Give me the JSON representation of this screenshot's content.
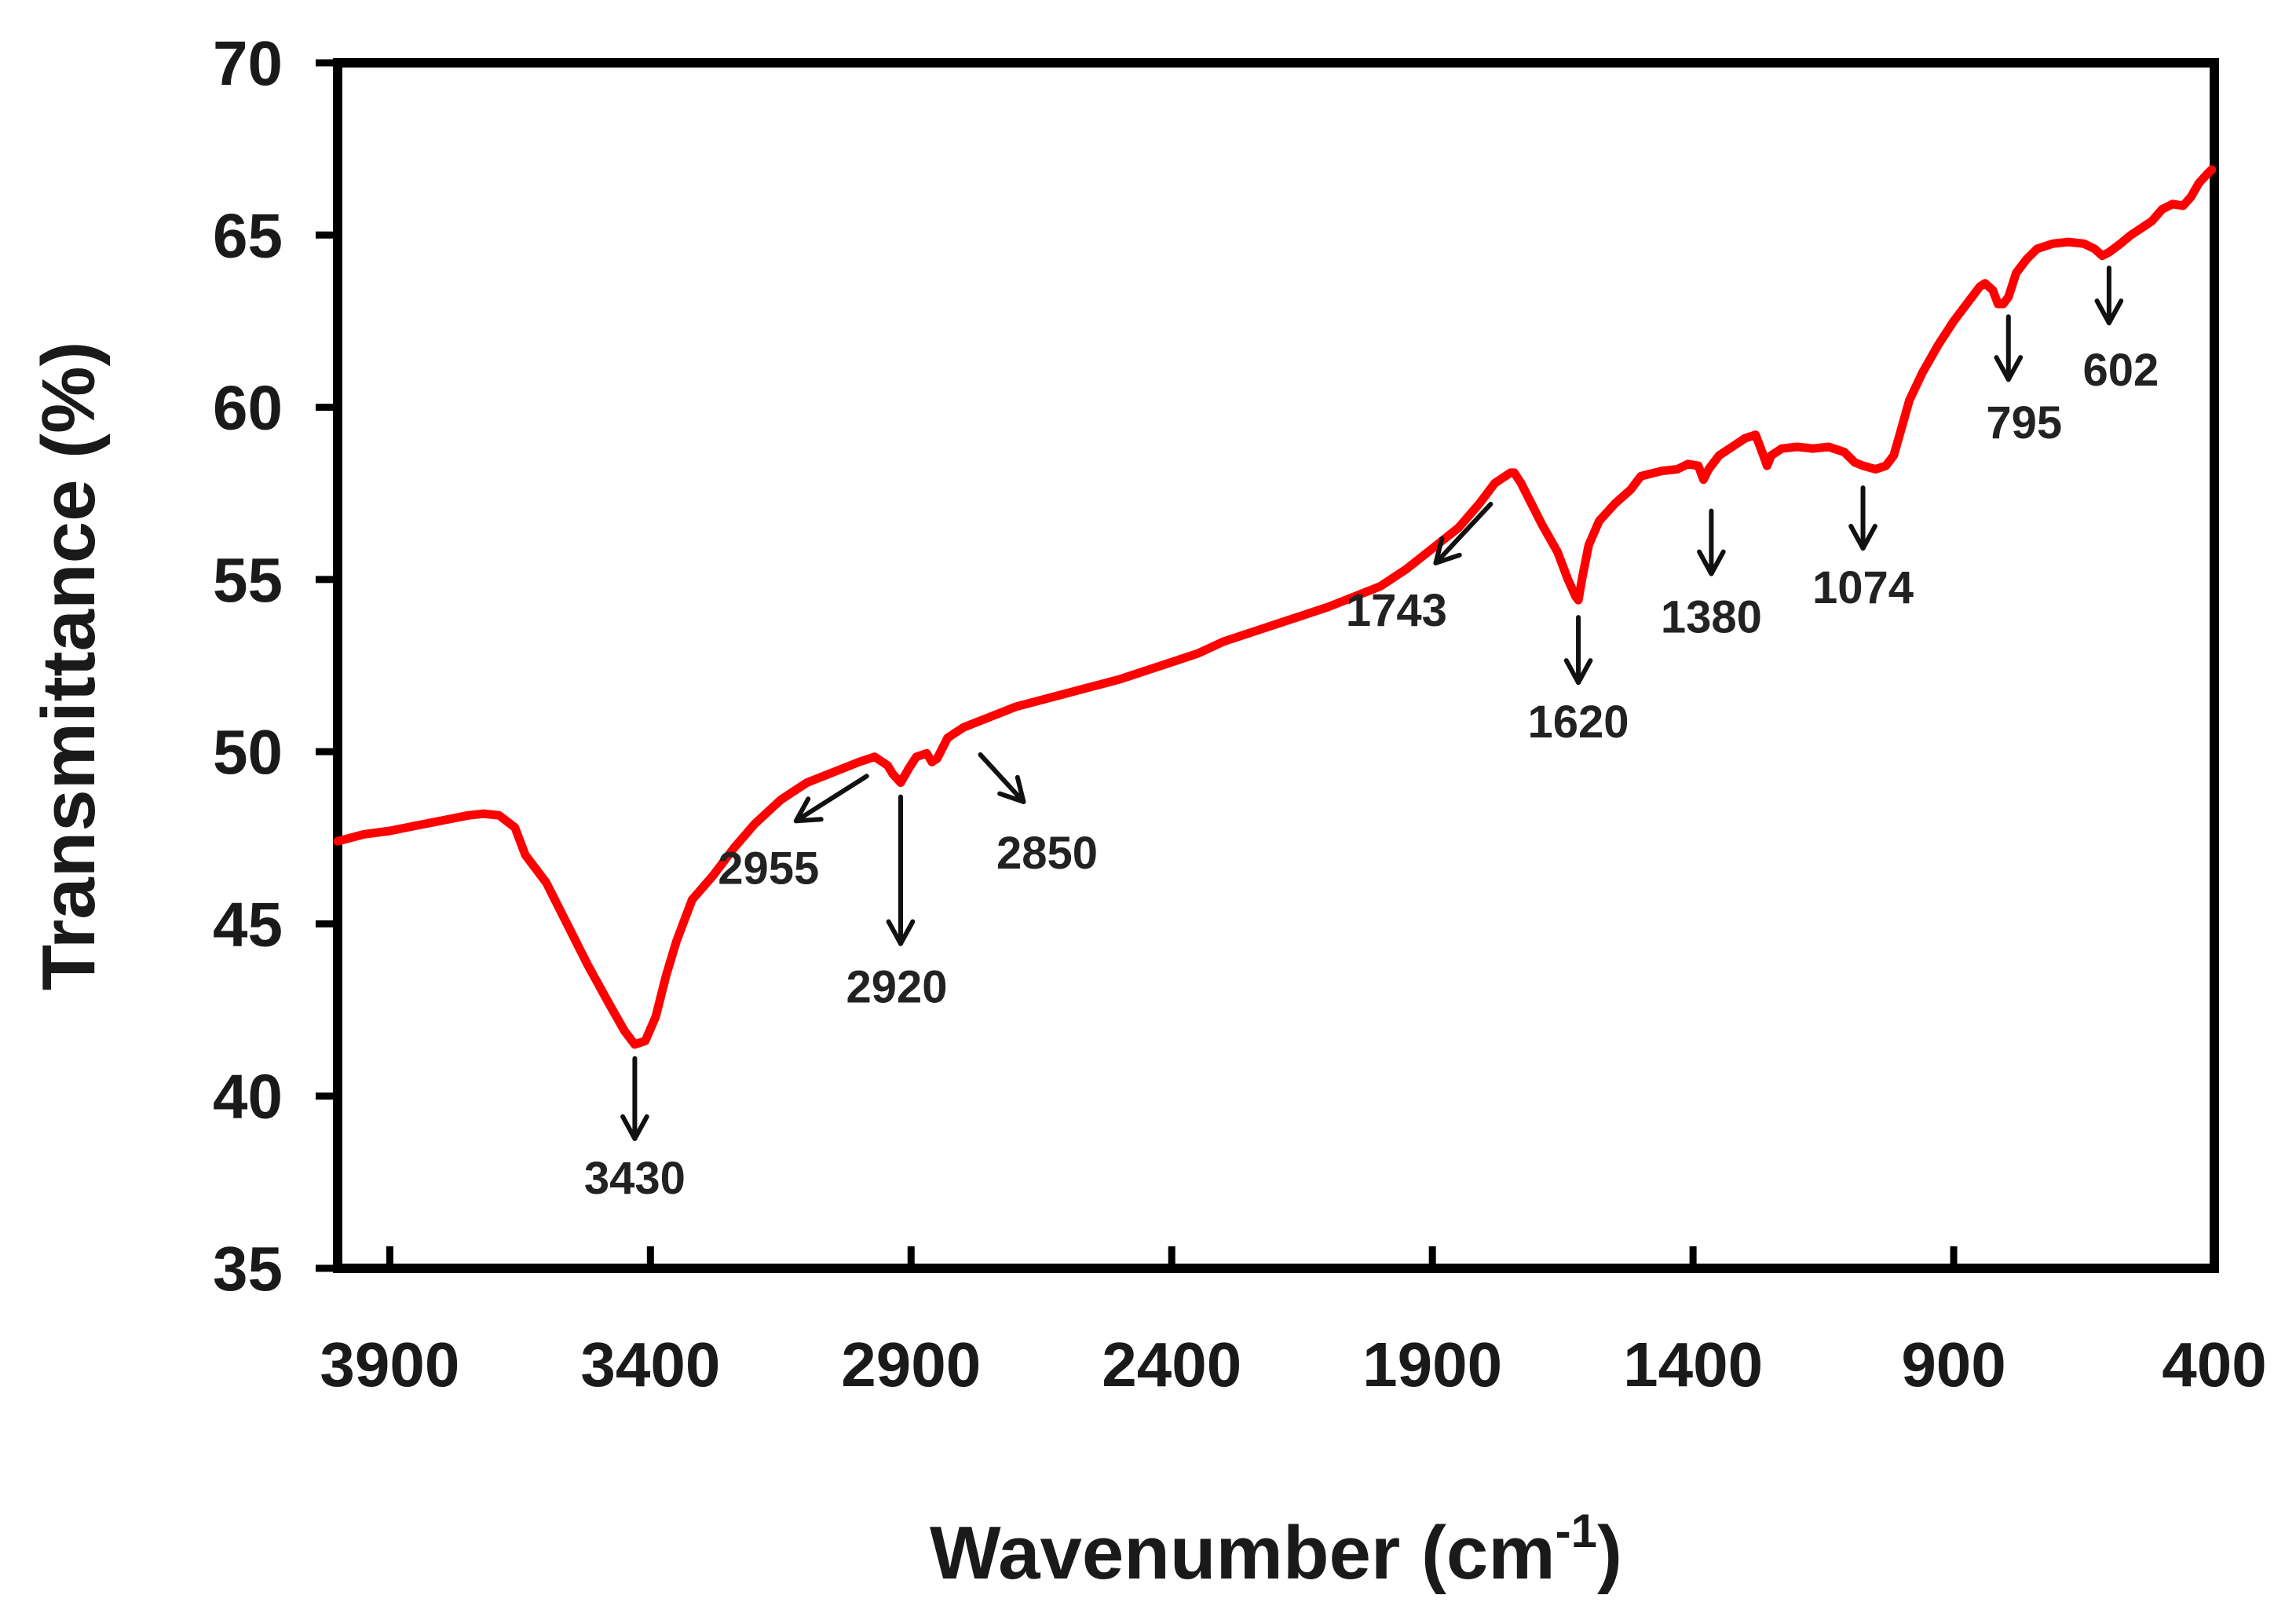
{
  "chart_data": {
    "type": "line",
    "title": "",
    "xlabel": "Wavenumber (cm",
    "xlabel_sup": "-1",
    "xlabel_close": ")",
    "ylabel": "Transmittance  (%)",
    "xlim": [
      4000,
      400
    ],
    "ylim": [
      35,
      70
    ],
    "x_ticks": [
      3900,
      3400,
      2900,
      2400,
      1900,
      1400,
      900,
      400
    ],
    "x_tick_labels": [
      "3900",
      "3400",
      "2900",
      "2400",
      "1900",
      "1400",
      "900",
      "400"
    ],
    "y_ticks": [
      35,
      40,
      45,
      50,
      55,
      60,
      65,
      70
    ],
    "y_tick_labels": [
      "35",
      "40",
      "45",
      "50",
      "55",
      "60",
      "65",
      "70"
    ],
    "grid": false,
    "series_color": "#ff0000",
    "series": [
      {
        "name": "spectrum",
        "points": [
          [
            4000,
            47.4
          ],
          [
            3950,
            47.6
          ],
          [
            3900,
            47.7
          ],
          [
            3850,
            47.85
          ],
          [
            3800,
            48.0
          ],
          [
            3750,
            48.15
          ],
          [
            3720,
            48.2
          ],
          [
            3690,
            48.15
          ],
          [
            3660,
            47.8
          ],
          [
            3640,
            47.0
          ],
          [
            3600,
            46.2
          ],
          [
            3560,
            45.0
          ],
          [
            3520,
            43.8
          ],
          [
            3480,
            42.7
          ],
          [
            3450,
            41.9
          ],
          [
            3430,
            41.5
          ],
          [
            3410,
            41.6
          ],
          [
            3390,
            42.3
          ],
          [
            3370,
            43.5
          ],
          [
            3350,
            44.5
          ],
          [
            3320,
            45.7
          ],
          [
            3280,
            46.4
          ],
          [
            3240,
            47.2
          ],
          [
            3200,
            47.9
          ],
          [
            3150,
            48.6
          ],
          [
            3100,
            49.1
          ],
          [
            3050,
            49.4
          ],
          [
            3000,
            49.7
          ],
          [
            2970,
            49.85
          ],
          [
            2955,
            49.7
          ],
          [
            2945,
            49.6
          ],
          [
            2935,
            49.35
          ],
          [
            2920,
            49.1
          ],
          [
            2905,
            49.5
          ],
          [
            2890,
            49.85
          ],
          [
            2870,
            49.95
          ],
          [
            2860,
            49.7
          ],
          [
            2850,
            49.8
          ],
          [
            2830,
            50.4
          ],
          [
            2800,
            50.7
          ],
          [
            2750,
            51.0
          ],
          [
            2700,
            51.3
          ],
          [
            2600,
            51.7
          ],
          [
            2500,
            52.1
          ],
          [
            2400,
            52.6
          ],
          [
            2350,
            52.85
          ],
          [
            2300,
            53.2
          ],
          [
            2200,
            53.7
          ],
          [
            2100,
            54.2
          ],
          [
            2000,
            54.8
          ],
          [
            1950,
            55.3
          ],
          [
            1900,
            55.9
          ],
          [
            1850,
            56.5
          ],
          [
            1810,
            57.2
          ],
          [
            1780,
            57.8
          ],
          [
            1750,
            58.1
          ],
          [
            1743,
            58.1
          ],
          [
            1730,
            57.8
          ],
          [
            1710,
            57.2
          ],
          [
            1690,
            56.6
          ],
          [
            1660,
            55.8
          ],
          [
            1640,
            55.0
          ],
          [
            1625,
            54.5
          ],
          [
            1620,
            54.4
          ],
          [
            1612,
            55.1
          ],
          [
            1600,
            56.0
          ],
          [
            1580,
            56.7
          ],
          [
            1550,
            57.2
          ],
          [
            1520,
            57.6
          ],
          [
            1500,
            58.0
          ],
          [
            1460,
            58.15
          ],
          [
            1430,
            58.2
          ],
          [
            1410,
            58.35
          ],
          [
            1390,
            58.3
          ],
          [
            1380,
            57.9
          ],
          [
            1370,
            58.2
          ],
          [
            1350,
            58.6
          ],
          [
            1320,
            58.9
          ],
          [
            1300,
            59.1
          ],
          [
            1280,
            59.2
          ],
          [
            1265,
            58.6
          ],
          [
            1258,
            58.3
          ],
          [
            1250,
            58.6
          ],
          [
            1230,
            58.8
          ],
          [
            1200,
            58.85
          ],
          [
            1170,
            58.8
          ],
          [
            1140,
            58.85
          ],
          [
            1110,
            58.7
          ],
          [
            1090,
            58.4
          ],
          [
            1074,
            58.3
          ],
          [
            1050,
            58.2
          ],
          [
            1030,
            58.3
          ],
          [
            1015,
            58.6
          ],
          [
            1000,
            59.4
          ],
          [
            985,
            60.2
          ],
          [
            960,
            61.0
          ],
          [
            930,
            61.8
          ],
          [
            900,
            62.5
          ],
          [
            870,
            63.1
          ],
          [
            850,
            63.5
          ],
          [
            840,
            63.6
          ],
          [
            825,
            63.4
          ],
          [
            815,
            63.0
          ],
          [
            805,
            63.0
          ],
          [
            795,
            63.2
          ],
          [
            780,
            63.9
          ],
          [
            760,
            64.3
          ],
          [
            740,
            64.6
          ],
          [
            710,
            64.75
          ],
          [
            680,
            64.8
          ],
          [
            650,
            64.75
          ],
          [
            630,
            64.6
          ],
          [
            615,
            64.4
          ],
          [
            602,
            64.5
          ],
          [
            580,
            64.75
          ],
          [
            560,
            65.0
          ],
          [
            540,
            65.2
          ],
          [
            520,
            65.4
          ],
          [
            500,
            65.75
          ],
          [
            480,
            65.9
          ],
          [
            460,
            65.85
          ],
          [
            445,
            66.1
          ],
          [
            430,
            66.5
          ],
          [
            415,
            66.75
          ],
          [
            405,
            66.9
          ]
        ]
      }
    ],
    "annotations": [
      {
        "label": "3430",
        "x": 3430
      },
      {
        "label": "2955",
        "x": 2955
      },
      {
        "label": "2920",
        "x": 2920
      },
      {
        "label": "2850",
        "x": 2850
      },
      {
        "label": "1743",
        "x": 1743
      },
      {
        "label": "1620",
        "x": 1620
      },
      {
        "label": "1380",
        "x": 1380
      },
      {
        "label": "1074",
        "x": 1074
      },
      {
        "label": "795",
        "x": 795
      },
      {
        "label": "602",
        "x": 602
      }
    ]
  }
}
